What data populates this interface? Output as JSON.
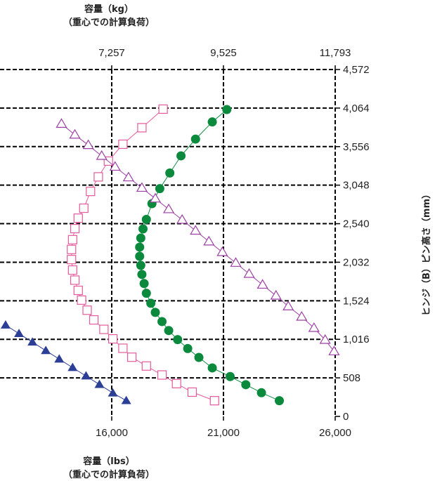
{
  "chart_data": {
    "type": "scatter",
    "top_axis": {
      "title_line1": "容量（kg）",
      "title_line2": "（重心での計算負荷）",
      "ticks": [
        "7,257",
        "9,525",
        "11,793"
      ],
      "tick_values": [
        16000,
        21000,
        26000
      ]
    },
    "bottom_axis": {
      "title_line1": "容量（lbs）",
      "title_line2": "（重心での計算負荷）",
      "ticks": [
        "16,000",
        "21,000",
        "26,000"
      ],
      "tick_values": [
        16000,
        21000,
        26000
      ],
      "xlim": [
        11000,
        26000
      ]
    },
    "right_axis": {
      "title": "ヒンジ（B）ピン高さ（mm）",
      "ticks": [
        "0",
        "508",
        "1,016",
        "1,524",
        "2,032",
        "2,540",
        "3,048",
        "3,556",
        "4,064",
        "4,572"
      ],
      "tick_values": [
        0,
        508,
        1016,
        1524,
        2032,
        2540,
        3048,
        3556,
        4064,
        4572
      ],
      "ylim": [
        0,
        4572
      ]
    },
    "grid": true,
    "series": [
      {
        "marker": "filled-circle",
        "color": "#0b8a3e",
        "points": [
          [
            23500,
            207
          ],
          [
            22700,
            312
          ],
          [
            22000,
            418
          ],
          [
            21300,
            525
          ],
          [
            20500,
            639
          ],
          [
            19900,
            777
          ],
          [
            19400,
            894
          ],
          [
            18950,
            1012
          ],
          [
            18550,
            1132
          ],
          [
            18250,
            1250
          ],
          [
            17950,
            1371
          ],
          [
            17750,
            1491
          ],
          [
            17550,
            1623
          ],
          [
            17450,
            1751
          ],
          [
            17350,
            1871
          ],
          [
            17300,
            1991
          ],
          [
            17250,
            2110
          ],
          [
            17250,
            2231
          ],
          [
            17300,
            2351
          ],
          [
            17400,
            2471
          ],
          [
            17550,
            2596
          ],
          [
            17800,
            2804
          ],
          [
            18150,
            3002
          ],
          [
            18600,
            3208
          ],
          [
            19100,
            3434
          ],
          [
            19750,
            3655
          ],
          [
            20500,
            3881
          ],
          [
            21150,
            4044
          ]
        ]
      },
      {
        "marker": "open-square",
        "color": "#e45a9c",
        "points": [
          [
            20600,
            207
          ],
          [
            19600,
            320
          ],
          [
            18900,
            432
          ],
          [
            18250,
            546
          ],
          [
            17550,
            664
          ],
          [
            16900,
            780
          ],
          [
            16500,
            898
          ],
          [
            16050,
            1022
          ],
          [
            15650,
            1147
          ],
          [
            15200,
            1272
          ],
          [
            14900,
            1400
          ],
          [
            14650,
            1533
          ],
          [
            14500,
            1661
          ],
          [
            14350,
            1796
          ],
          [
            14250,
            1929
          ],
          [
            14200,
            2067
          ],
          [
            14200,
            2200
          ],
          [
            14250,
            2329
          ],
          [
            14350,
            2475
          ],
          [
            14500,
            2613
          ],
          [
            14750,
            2744
          ],
          [
            15050,
            2965
          ],
          [
            15400,
            3157
          ],
          [
            15850,
            3365
          ],
          [
            16500,
            3587
          ],
          [
            17350,
            3805
          ],
          [
            18300,
            4050
          ]
        ]
      },
      {
        "marker": "open-triangle",
        "color": "#9b3fa3",
        "points": [
          [
            25950,
            857
          ],
          [
            25550,
            1008
          ],
          [
            25050,
            1165
          ],
          [
            24500,
            1313
          ],
          [
            23900,
            1450
          ],
          [
            23350,
            1591
          ],
          [
            22750,
            1735
          ],
          [
            22150,
            1878
          ],
          [
            21550,
            2023
          ],
          [
            20950,
            2165
          ],
          [
            20350,
            2305
          ],
          [
            19750,
            2447
          ],
          [
            19150,
            2591
          ],
          [
            18550,
            2730
          ],
          [
            17950,
            2871
          ],
          [
            17350,
            3012
          ],
          [
            16750,
            3150
          ],
          [
            16150,
            3290
          ],
          [
            15550,
            3433
          ],
          [
            14950,
            3575
          ],
          [
            14350,
            3713
          ],
          [
            13750,
            3855
          ]
        ]
      },
      {
        "marker": "filled-triangle",
        "color": "#2c3e96",
        "points": [
          [
            16650,
            207
          ],
          [
            16050,
            308
          ],
          [
            15450,
            420
          ],
          [
            14850,
            532
          ],
          [
            14250,
            643
          ],
          [
            13650,
            755
          ],
          [
            13050,
            867
          ],
          [
            12450,
            979
          ],
          [
            11850,
            1091
          ],
          [
            11250,
            1203
          ]
        ]
      }
    ]
  }
}
